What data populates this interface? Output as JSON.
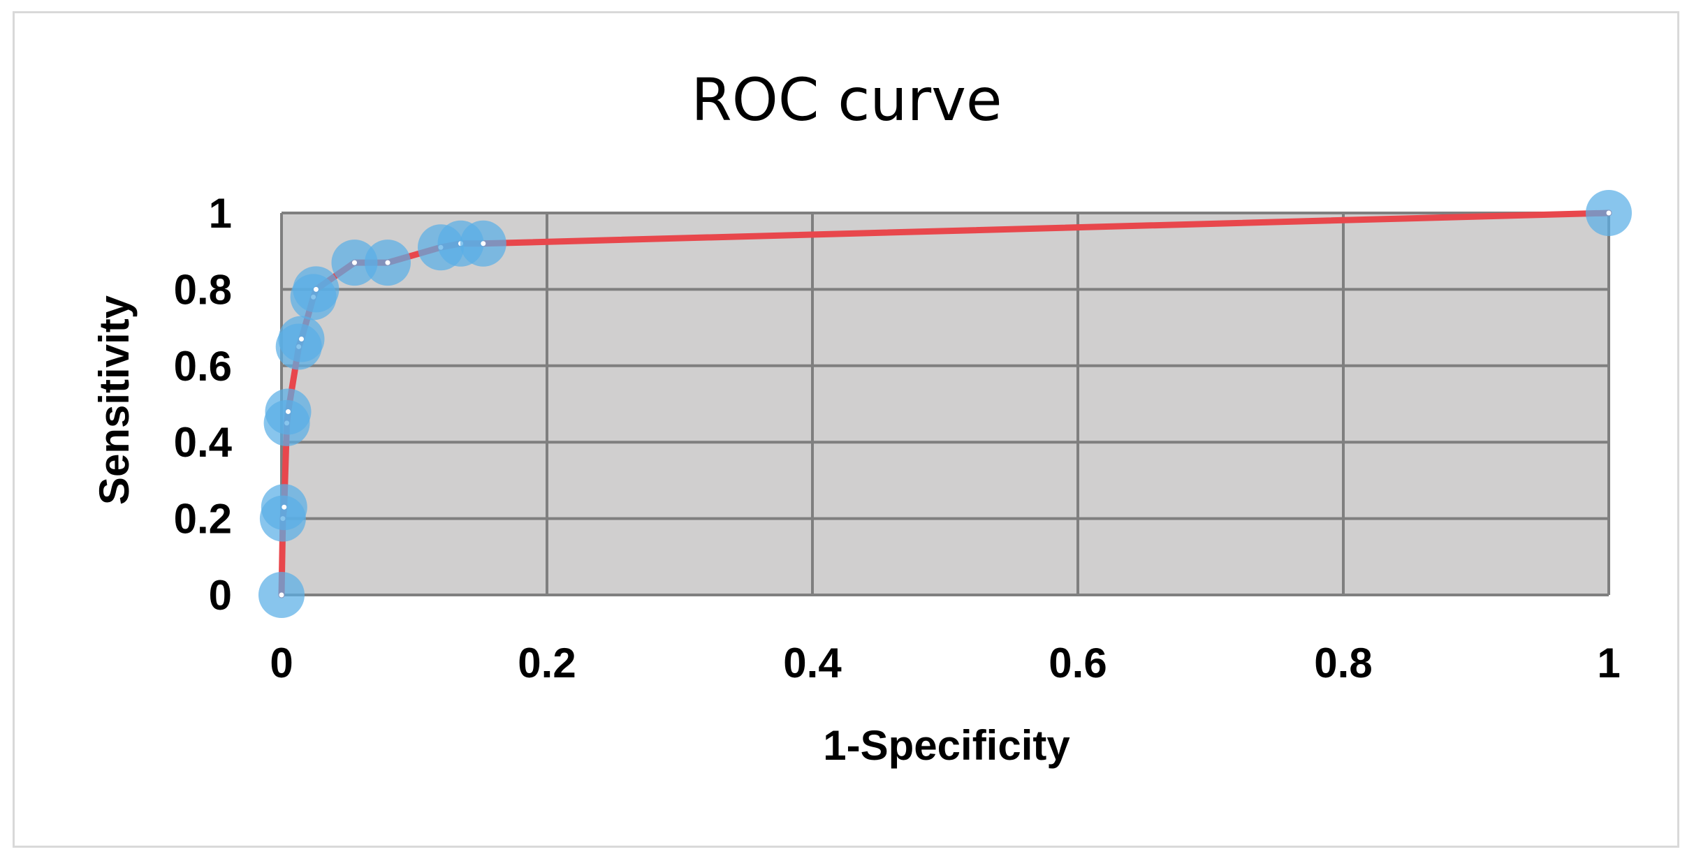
{
  "chart_data": {
    "type": "line",
    "title": "ROC curve",
    "xlabel": "1-Specificity",
    "ylabel": "Sensitivity",
    "xlim": [
      0,
      1
    ],
    "ylim": [
      0,
      1
    ],
    "grid": true,
    "x_ticks": [
      {
        "value": 0,
        "label": "0"
      },
      {
        "value": 0.2,
        "label": "0.2"
      },
      {
        "value": 0.4,
        "label": "0.4"
      },
      {
        "value": 0.6,
        "label": "0.6"
      },
      {
        "value": 0.8,
        "label": "0.8"
      },
      {
        "value": 1,
        "label": "1"
      }
    ],
    "y_ticks": [
      {
        "value": 0,
        "label": "0"
      },
      {
        "value": 0.2,
        "label": "0.2"
      },
      {
        "value": 0.4,
        "label": "0.4"
      },
      {
        "value": 0.6,
        "label": "0.6"
      },
      {
        "value": 0.8,
        "label": "0.8"
      },
      {
        "value": 1,
        "label": "1"
      }
    ],
    "series": [
      {
        "name": "ROC",
        "x": [
          0,
          0.001,
          0.002,
          0.004,
          0.005,
          0.013,
          0.015,
          0.024,
          0.026,
          0.055,
          0.08,
          0.12,
          0.135,
          0.152,
          1
        ],
        "y": [
          0,
          0.2,
          0.23,
          0.45,
          0.48,
          0.65,
          0.67,
          0.78,
          0.8,
          0.87,
          0.87,
          0.91,
          0.92,
          0.92,
          1.0
        ]
      }
    ],
    "colors": {
      "plot_background": "#d0cfcf",
      "gridline": "#7f7f7f",
      "line": "#e8474c",
      "marker": "#5aaee6",
      "marker_center": "#ffffff"
    }
  }
}
